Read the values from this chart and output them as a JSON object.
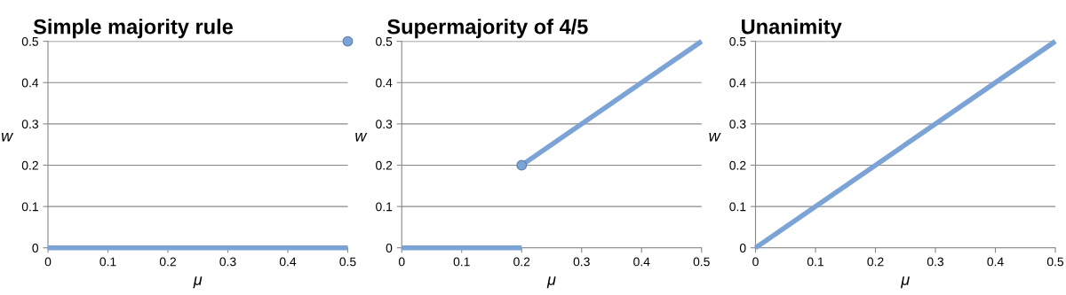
{
  "chart_data": [
    {
      "type": "line",
      "title": "Simple majority rule",
      "xlabel": "μ",
      "ylabel": "w",
      "xlim": [
        0,
        0.5
      ],
      "ylim": [
        0,
        0.5
      ],
      "xticks": [
        0,
        0.1,
        0.2,
        0.3,
        0.4,
        0.5
      ],
      "yticks": [
        0,
        0.1,
        0.2,
        0.3,
        0.4,
        0.5
      ],
      "grid": "y",
      "series": [
        {
          "color": "#7ba3d6",
          "x": [
            0,
            0.5
          ],
          "values": [
            0,
            0
          ]
        },
        {
          "type": "scatter",
          "color": "#7ba3d6",
          "x": [
            0.5
          ],
          "values": [
            0.5
          ]
        }
      ]
    },
    {
      "type": "line",
      "title": "Supermajority of 4/5",
      "xlabel": "μ",
      "ylabel": "w",
      "xlim": [
        0,
        0.5
      ],
      "ylim": [
        0,
        0.5
      ],
      "xticks": [
        0,
        0.1,
        0.2,
        0.3,
        0.4,
        0.5
      ],
      "yticks": [
        0,
        0.1,
        0.2,
        0.3,
        0.4,
        0.5
      ],
      "grid": "y",
      "series": [
        {
          "color": "#7ba3d6",
          "x": [
            0,
            0.2
          ],
          "values": [
            0,
            0
          ]
        },
        {
          "color": "#7ba3d6",
          "x": [
            0.2,
            0.5
          ],
          "values": [
            0.2,
            0.5
          ]
        },
        {
          "type": "scatter",
          "color": "#7ba3d6",
          "x": [
            0.2
          ],
          "values": [
            0.2
          ]
        }
      ]
    },
    {
      "type": "line",
      "title": "Unanimity",
      "xlabel": "μ",
      "ylabel": "w",
      "xlim": [
        0,
        0.5
      ],
      "ylim": [
        0,
        0.5
      ],
      "xticks": [
        0,
        0.1,
        0.2,
        0.3,
        0.4,
        0.5
      ],
      "yticks": [
        0,
        0.1,
        0.2,
        0.3,
        0.4,
        0.5
      ],
      "grid": "y",
      "series": [
        {
          "color": "#7ba3d6",
          "x": [
            0,
            0.5
          ],
          "values": [
            0,
            0.5
          ]
        }
      ]
    }
  ]
}
